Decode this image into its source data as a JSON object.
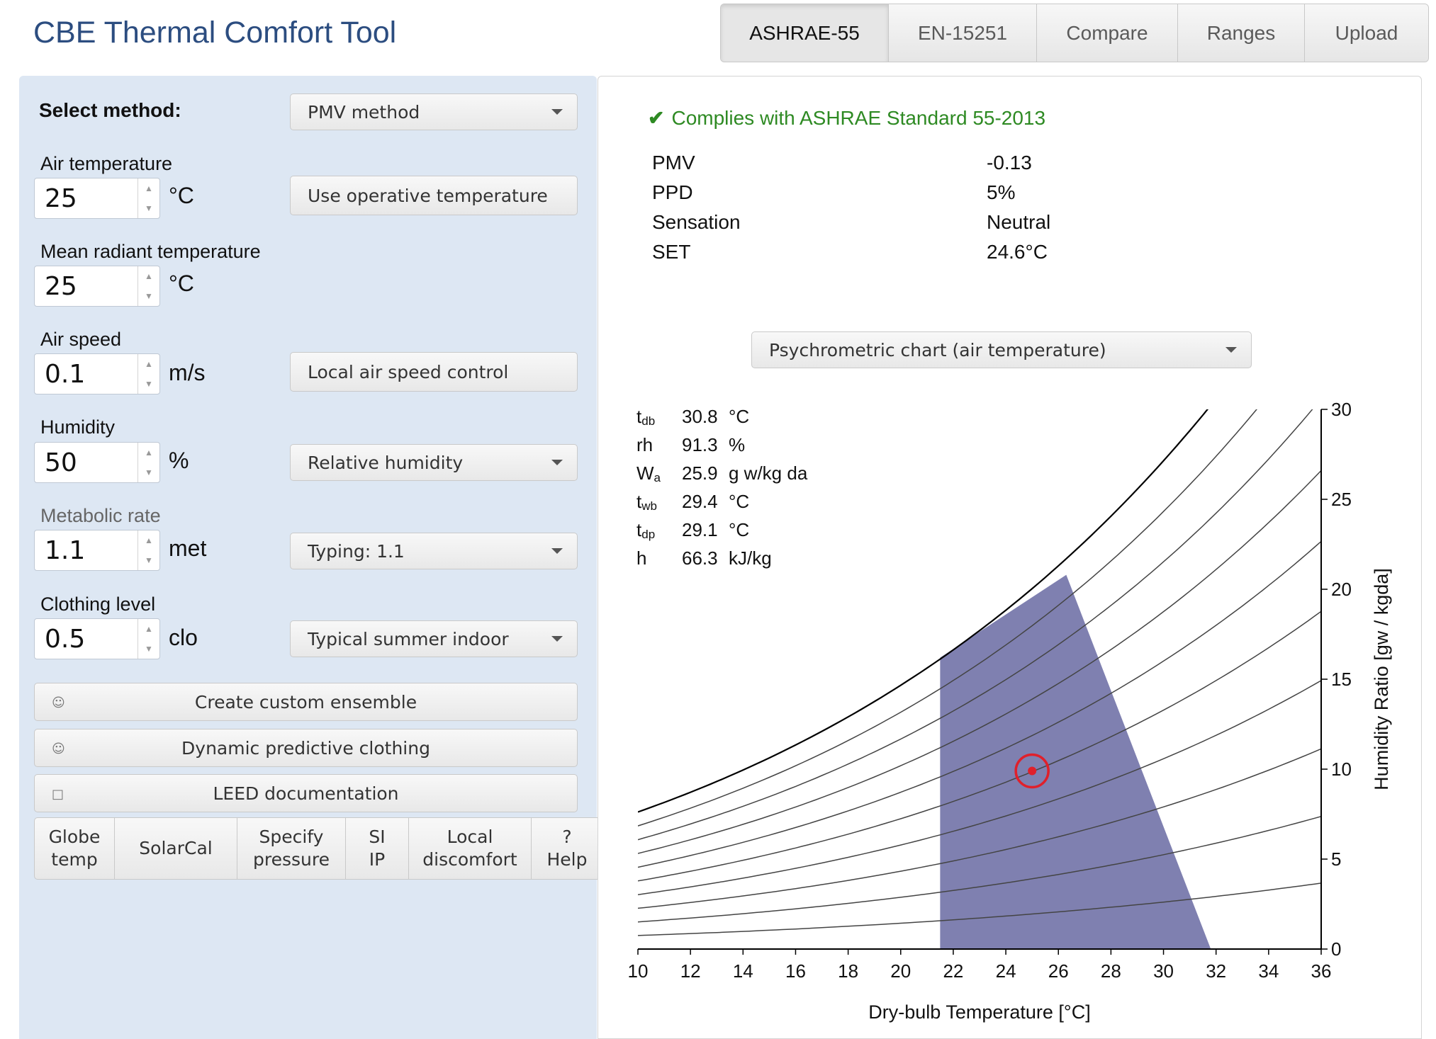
{
  "app_title": "CBE Thermal Comfort Tool",
  "tabs": [
    "ASHRAE-55",
    "EN-15251",
    "Compare",
    "Ranges",
    "Upload"
  ],
  "active_tab": "ASHRAE-55",
  "inputs": {
    "select_method_label": "Select method:",
    "method": "PMV method",
    "air_temp": {
      "label": "Air temperature",
      "value": "25",
      "unit": "°C",
      "button": "Use operative temperature"
    },
    "mrt": {
      "label": "Mean radiant temperature",
      "value": "25",
      "unit": "°C"
    },
    "air_speed": {
      "label": "Air speed",
      "value": "0.1",
      "unit": "m/s",
      "button": "Local air speed control"
    },
    "humidity": {
      "label": "Humidity",
      "value": "50",
      "unit": "%",
      "select": "Relative humidity"
    },
    "met": {
      "label": "Metabolic rate",
      "value": "1.1",
      "unit": "met",
      "select": "Typing: 1.1"
    },
    "clo": {
      "label": "Clothing level",
      "value": "0.5",
      "unit": "clo",
      "select": "Typical summer indoor"
    }
  },
  "actions": {
    "custom_ensemble": "Create custom ensemble",
    "dynamic_clothing": "Dynamic predictive clothing",
    "leed": "LEED documentation"
  },
  "toolbar": [
    "Globe\ntemp",
    "SolarCal",
    "Specify\npressure",
    "SI\nIP",
    "Local\ndiscomfort",
    "?\nHelp"
  ],
  "results": {
    "compliance": "Complies with ASHRAE Standard 55-2013",
    "rows": [
      {
        "label": "PMV",
        "value": "-0.13"
      },
      {
        "label": "PPD",
        "value": "5%"
      },
      {
        "label": "Sensation",
        "value": "Neutral"
      },
      {
        "label": "SET",
        "value": "24.6°C"
      }
    ]
  },
  "chart_select": "Psychrometric chart (air temperature)",
  "psychro_readout": [
    {
      "key": "t",
      "sub": "db",
      "value": "30.8",
      "unit": "°C"
    },
    {
      "key": "rh",
      "sub": "",
      "value": "91.3",
      "unit": "%"
    },
    {
      "key": "W",
      "sub": "a",
      "value": "25.9",
      "unit": "g w/kg da"
    },
    {
      "key": "t",
      "sub": "wb",
      "value": "29.4",
      "unit": "°C"
    },
    {
      "key": "t",
      "sub": "dp",
      "value": "29.1",
      "unit": "°C"
    },
    {
      "key": "h",
      "sub": "",
      "value": "66.3",
      "unit": "kJ/kg"
    }
  ],
  "colors": {
    "comfort_zone": "#7f80b0",
    "point": "#e0202b",
    "compliance": "#2e8a23",
    "title": "#2c4d80"
  },
  "chart_data": {
    "type": "line",
    "xlabel": "Dry-bulb Temperature [°C]",
    "ylabel": "Humidity Ratio [gw / kgda]",
    "xlim": [
      10,
      36
    ],
    "ylim": [
      0,
      30
    ],
    "x_ticks": [
      10,
      12,
      14,
      16,
      18,
      20,
      22,
      24,
      26,
      28,
      30,
      32,
      34,
      36
    ],
    "y_ticks": [
      0,
      5,
      10,
      15,
      20,
      25,
      30
    ],
    "rh_curves_percent": [
      10,
      20,
      30,
      40,
      50,
      60,
      70,
      80,
      90,
      100
    ],
    "comfort_zone": [
      [
        21.5,
        0
      ],
      [
        25.1,
        0
      ],
      [
        31.8,
        0
      ],
      [
        26.3,
        20.8
      ],
      [
        21.5,
        16.2
      ]
    ],
    "current_point": {
      "x": 25,
      "y": 9.9
    }
  }
}
